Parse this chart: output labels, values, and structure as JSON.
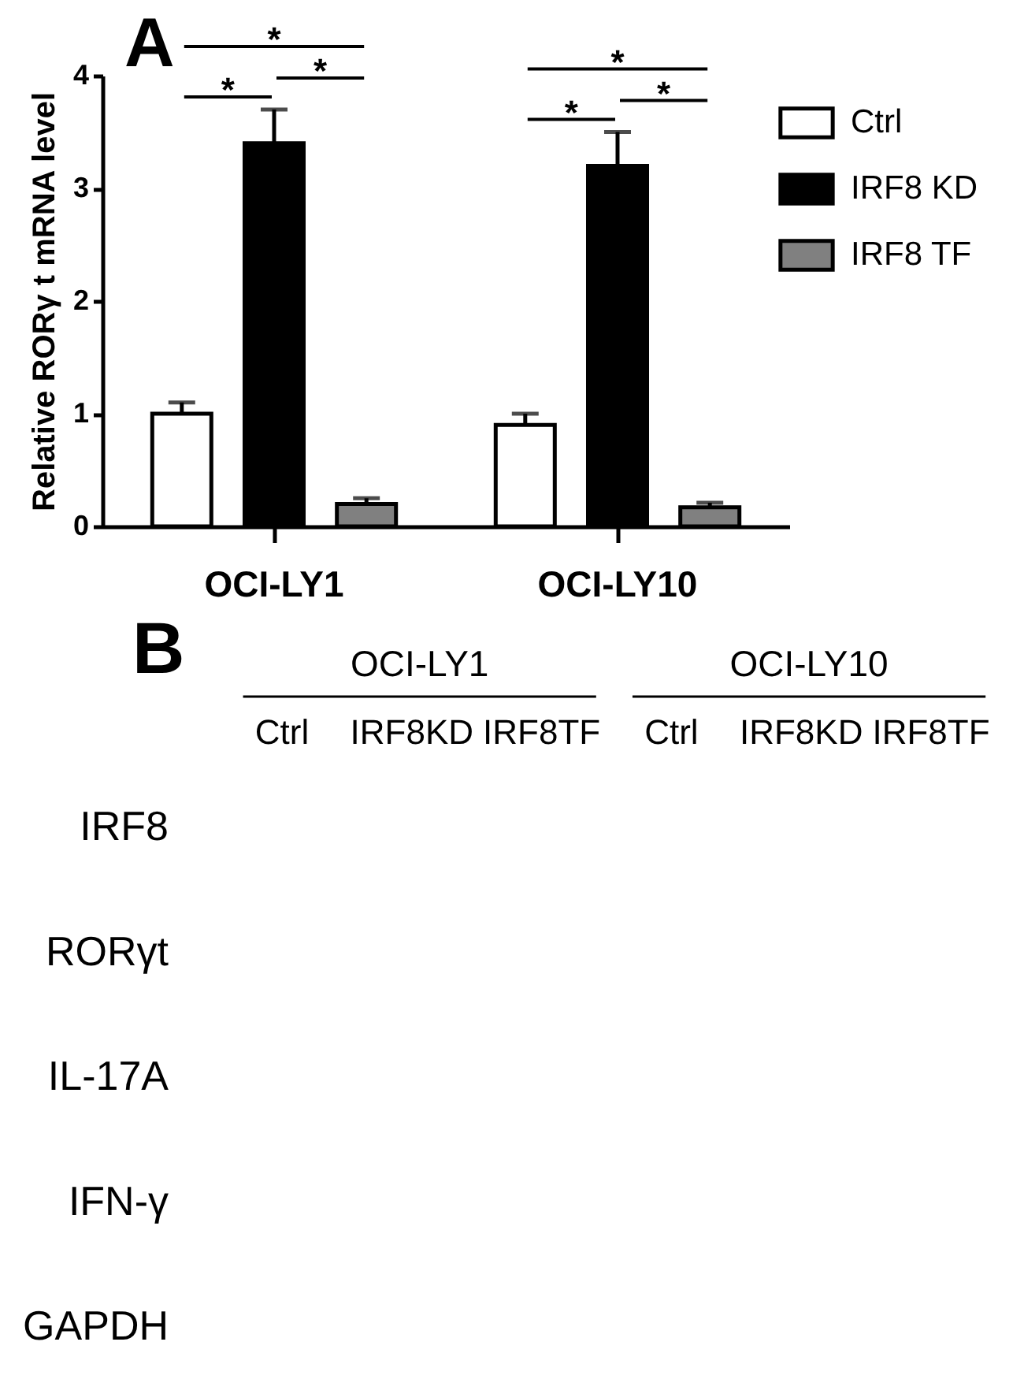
{
  "chart_data": [
    {
      "type": "bar",
      "title": "A",
      "ylabel": "Relative RORγ t mRNA level",
      "categories": [
        "OCI-LY1",
        "OCI-LY10"
      ],
      "series": [
        {
          "name": "Ctrl",
          "color": "#ffffff",
          "values": [
            1.0,
            0.9
          ],
          "errors": [
            [
              1.0,
              1.1
            ],
            [
              0.9,
              1.0
            ]
          ]
        },
        {
          "name": "IRF8 KD",
          "color": "#000000",
          "values": [
            3.4,
            3.2
          ],
          "errors": [
            [
              3.4,
              3.7
            ],
            [
              3.2,
              3.5
            ]
          ]
        },
        {
          "name": "IRF8 TF",
          "color": "#808080",
          "values": [
            0.2,
            0.17
          ],
          "errors": [
            [
              0.2,
              0.25
            ],
            [
              0.17,
              0.21
            ]
          ]
        }
      ],
      "ylim": [
        0,
        4
      ],
      "yticks": [
        0,
        1,
        2,
        3,
        4
      ],
      "grid": false,
      "legend": "top right",
      "annotations": [
        "*",
        "*",
        "*",
        "*",
        "*",
        "*"
      ]
    },
    {
      "type": "other",
      "title": "B",
      "annotations": [
        "OCI-LY1",
        "OCI-LY10"
      ],
      "categories": [
        "Ctrl",
        "IRF8KD",
        "IRF8TF",
        "Ctrl",
        "IRF8KD",
        "IRF8TF"
      ],
      "y_categories": [
        "IRF8",
        "RORγt",
        "IL-17A",
        "IFN-γ",
        "GAPDH"
      ]
    }
  ]
}
